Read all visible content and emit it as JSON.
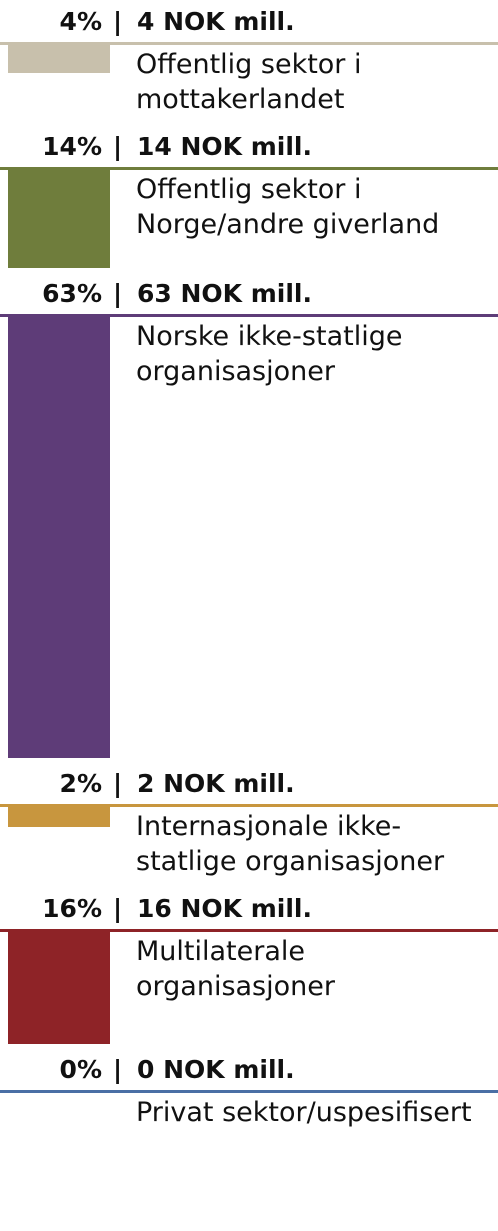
{
  "chart_data": {
    "type": "bar",
    "orientation": "vertical-stacked",
    "unit": "NOK mill.",
    "categories": [
      "Offentlig sektor i mottakerlandet",
      "Offentlig sektor i Norge/andre giverland",
      "Norske ikke-statlige organisasjoner",
      "Internasjonale ikke-statlige organisasjoner",
      "Multilaterale organisasjoner",
      "Privat sektor/uspesifisert"
    ],
    "rows": [
      {
        "pct_label": "4%",
        "amount_label": "4 NOK mill.",
        "label": "Offentlig sektor i mottakerlandet",
        "percent": 4,
        "value": 4,
        "color": "#c8c0ac"
      },
      {
        "pct_label": "14%",
        "amount_label": "14 NOK mill.",
        "label": "Offentlig sektor i Norge/andre giverland",
        "percent": 14,
        "value": 14,
        "color": "#6f7d3c"
      },
      {
        "pct_label": "63%",
        "amount_label": "63 NOK mill.",
        "label": "Norske ikke-statlige organisasjoner",
        "percent": 63,
        "value": 63,
        "color": "#5e3c78"
      },
      {
        "pct_label": "2%",
        "amount_label": "2 NOK mill.",
        "label": "Internasjonale ikke-statlige organisasjoner",
        "percent": 2,
        "value": 2,
        "color": "#c8963e"
      },
      {
        "pct_label": "16%",
        "amount_label": "16 NOK mill.",
        "label": "Multilaterale organisasjoner",
        "percent": 16,
        "value": 16,
        "color": "#8e2327"
      },
      {
        "pct_label": "0%",
        "amount_label": "0 NOK mill.",
        "label": "Privat sektor/uspesifisert",
        "percent": 0,
        "value": 0,
        "color": "#4a6fa5"
      }
    ]
  },
  "separator": "|"
}
